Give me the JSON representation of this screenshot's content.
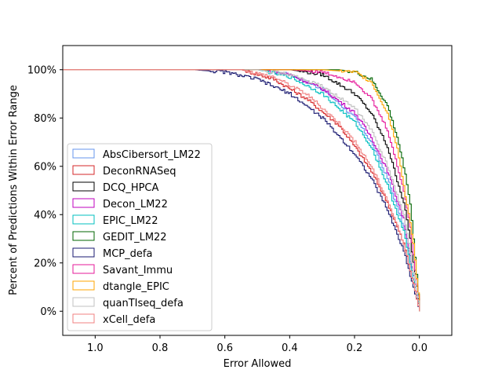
{
  "chart_data": {
    "type": "line",
    "title": "",
    "xlabel": "Error Allowed",
    "ylabel": "Percent of Predictions Within Error Range",
    "xlim": [
      1.1,
      -0.1
    ],
    "ylim": [
      -10,
      110
    ],
    "xticks": [
      1.0,
      0.8,
      0.6,
      0.4,
      0.2,
      0.0
    ],
    "xtick_labels": [
      "1.0",
      "0.8",
      "0.6",
      "0.4",
      "0.2",
      "0.0"
    ],
    "yticks": [
      0,
      20,
      40,
      60,
      80,
      100
    ],
    "ytick_labels": [
      "0%",
      "20%",
      "40%",
      "60%",
      "80%",
      "100%"
    ],
    "grid": false,
    "legend_position": "lower-left",
    "series": [
      {
        "name": "AbsCibersort_LM22",
        "color": "#6495ED",
        "x": [
          1.1,
          0.5,
          0.4,
          0.3,
          0.2,
          0.15,
          0.1,
          0.05,
          0.0
        ],
        "y": [
          100,
          100,
          98,
          92,
          80,
          70,
          55,
          35,
          0
        ]
      },
      {
        "name": "DeconRNASeq",
        "color": "#d62728",
        "x": [
          1.1,
          0.55,
          0.45,
          0.35,
          0.25,
          0.2,
          0.15,
          0.1,
          0.05,
          0.0
        ],
        "y": [
          100,
          100,
          96,
          88,
          77,
          68,
          58,
          45,
          28,
          0
        ]
      },
      {
        "name": "DCQ_HPCA",
        "color": "#000000",
        "x": [
          1.1,
          0.4,
          0.3,
          0.2,
          0.15,
          0.1,
          0.05,
          0.03,
          0.0
        ],
        "y": [
          100,
          100,
          98,
          90,
          82,
          68,
          45,
          30,
          0
        ]
      },
      {
        "name": "Decon_LM22",
        "color": "#bf00bf",
        "x": [
          1.1,
          0.5,
          0.4,
          0.3,
          0.2,
          0.15,
          0.1,
          0.05,
          0.0
        ],
        "y": [
          100,
          100,
          98,
          92,
          82,
          72,
          58,
          38,
          0
        ]
      },
      {
        "name": "EPIC_LM22",
        "color": "#00bfbf",
        "x": [
          1.1,
          0.5,
          0.4,
          0.3,
          0.2,
          0.15,
          0.1,
          0.05,
          0.0
        ],
        "y": [
          100,
          100,
          97,
          90,
          78,
          68,
          52,
          33,
          0
        ]
      },
      {
        "name": "GEDIT_LM22",
        "color": "#006400",
        "x": [
          1.1,
          0.25,
          0.2,
          0.15,
          0.1,
          0.07,
          0.05,
          0.03,
          0.0
        ],
        "y": [
          100,
          100,
          99,
          96,
          85,
          72,
          60,
          45,
          0
        ]
      },
      {
        "name": "MCP_defa",
        "color": "#191970",
        "x": [
          1.1,
          0.7,
          0.6,
          0.5,
          0.4,
          0.3,
          0.2,
          0.15,
          0.1,
          0.05,
          0.0
        ],
        "y": [
          100,
          100,
          99,
          96,
          90,
          80,
          65,
          55,
          42,
          25,
          0
        ]
      },
      {
        "name": "Savant_Immu",
        "color": "#e6199a",
        "x": [
          1.1,
          0.4,
          0.3,
          0.2,
          0.15,
          0.1,
          0.05,
          0.03,
          0.0
        ],
        "y": [
          100,
          100,
          99,
          95,
          88,
          75,
          50,
          35,
          0
        ]
      },
      {
        "name": "dtangle_EPIC",
        "color": "#FFA500",
        "x": [
          1.1,
          0.3,
          0.2,
          0.15,
          0.1,
          0.07,
          0.05,
          0.02,
          0.0
        ],
        "y": [
          100,
          100,
          99,
          95,
          82,
          68,
          52,
          28,
          0
        ]
      },
      {
        "name": "quanTIseq_defa",
        "color": "#c0c0c0",
        "x": [
          1.1,
          0.5,
          0.4,
          0.3,
          0.2,
          0.15,
          0.1,
          0.05,
          0.0
        ],
        "y": [
          100,
          100,
          98,
          93,
          84,
          75,
          60,
          40,
          0
        ]
      },
      {
        "name": "xCell_defa",
        "color": "#F08080",
        "x": [
          1.1,
          0.55,
          0.45,
          0.35,
          0.25,
          0.2,
          0.15,
          0.1,
          0.05,
          0.0
        ],
        "y": [
          100,
          100,
          97,
          90,
          78,
          70,
          60,
          46,
          28,
          0
        ]
      }
    ]
  }
}
